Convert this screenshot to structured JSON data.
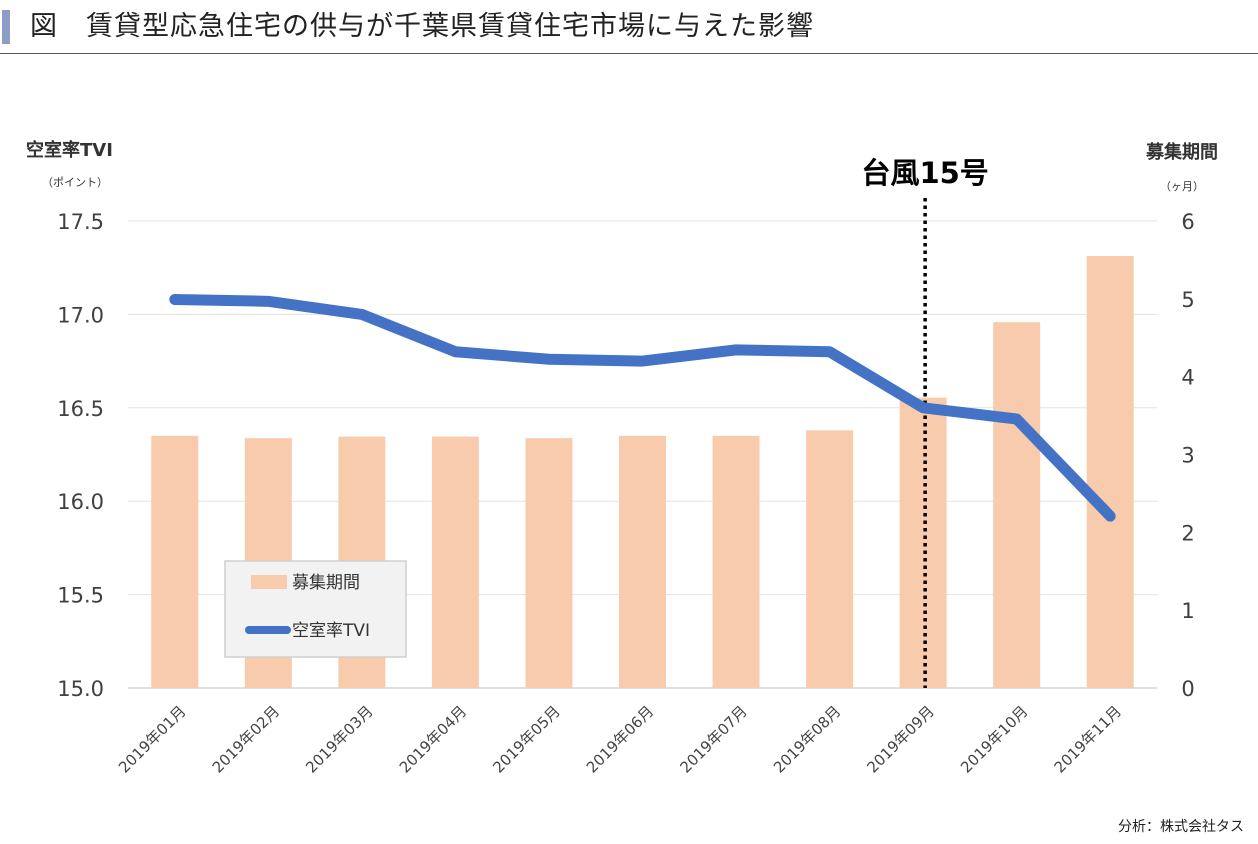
{
  "header": {
    "title": "図　賃貸型応急住宅の供与が千葉県賃貸住宅市場に与えた影響"
  },
  "chart_data": {
    "type": "bar",
    "categories": [
      "2019年01月",
      "2019年02月",
      "2019年03月",
      "2019年04月",
      "2019年05月",
      "2019年06月",
      "2019年07月",
      "2019年08月",
      "2019年09月",
      "2019年10月",
      "2019年11月"
    ],
    "series": [
      {
        "name": "募集期間",
        "type": "bar",
        "axis": "right",
        "color": "#f8cbad",
        "values": [
          3.24,
          3.21,
          3.23,
          3.23,
          3.21,
          3.24,
          3.24,
          3.31,
          3.73,
          4.7,
          5.55
        ]
      },
      {
        "name": "空室率TVI",
        "type": "line",
        "axis": "left",
        "color": "#4472c4",
        "values": [
          17.08,
          17.07,
          17.0,
          16.8,
          16.76,
          16.75,
          16.81,
          16.8,
          16.5,
          16.44,
          15.92
        ]
      }
    ],
    "y_left": {
      "label": "空室率TVI",
      "unit": "（ポイント）",
      "range": [
        15.0,
        17.5
      ],
      "ticks": [
        "15.0",
        "15.5",
        "16.0",
        "16.5",
        "17.0",
        "17.5"
      ]
    },
    "y_right": {
      "label": "募集期間",
      "unit": "（ヶ月）",
      "range": [
        0,
        6
      ],
      "ticks": [
        "0",
        "1",
        "2",
        "3",
        "4",
        "5",
        "6"
      ]
    },
    "grid": true,
    "legend_position": "bottom-left",
    "event_line": {
      "label": "台風15号",
      "category": "2019年09月"
    }
  },
  "source": "分析：株式会社タス"
}
